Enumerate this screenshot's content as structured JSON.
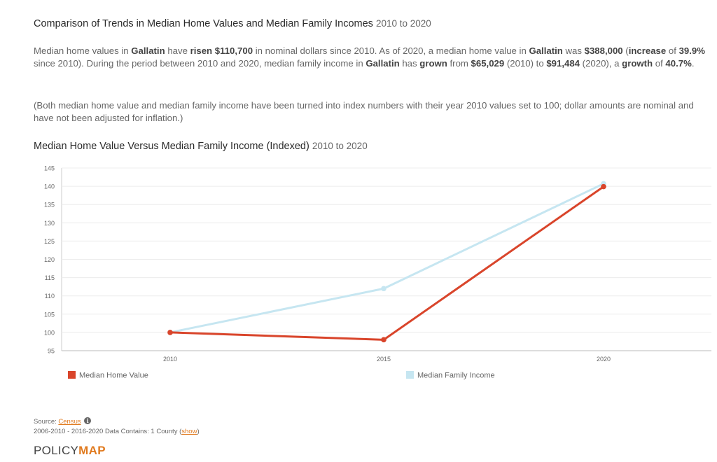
{
  "header": {
    "title": "Comparison of Trends in Median Home Values and Median Family Incomes",
    "title_range": "2010 to 2020"
  },
  "summary": {
    "t1": "Median home values in ",
    "place1": "Gallatin",
    "t2": " have ",
    "verb1": "risen $110,700",
    "t3": " in nominal dollars since 2010. As of 2020, a median home value in ",
    "place2": "Gallatin",
    "t4": " was ",
    "value2020": "$388,000",
    "t5": " (",
    "inc_word": "increase",
    "t6": " of ",
    "inc_pct": "39.9%",
    "t7": " since 2010). During the period between 2010 and 2020, median family income in ",
    "place3": "Gallatin",
    "t8": " has ",
    "verb2": "grown",
    "t9": " from ",
    "income2010": "$65,029",
    "t10": " (2010) to ",
    "income2020": "$91,484",
    "t11": " (2020), a ",
    "growth_word": "growth",
    "t12": " of ",
    "growth_pct": "40.7%",
    "t13": "."
  },
  "note": "(Both median home value and median family income have been turned into index numbers with their year 2010 values set to 100; dollar amounts are nominal and have not been adjusted for inflation.)",
  "chart_data": {
    "type": "line",
    "title": "Median Home Value Versus Median Family Income (Indexed)",
    "subtitle": "2010 to 2020",
    "categories": [
      "2010",
      "2015",
      "2020"
    ],
    "ylim": [
      95,
      145
    ],
    "yticks": [
      95,
      100,
      105,
      110,
      115,
      120,
      125,
      130,
      135,
      140,
      145
    ],
    "grid": true,
    "legend_position": "bottom",
    "series": [
      {
        "name": "Median Home Value",
        "color": "#d9452b",
        "values": [
          100,
          98,
          139.9
        ]
      },
      {
        "name": "Median Family Income",
        "color": "#c6e6f1",
        "values": [
          100,
          112,
          140.7
        ]
      }
    ]
  },
  "footer": {
    "source_label": "Source: ",
    "source_link": "Census",
    "info_glyph": "i",
    "range_text": "2006-2010 - 2016-2020 Data Contains: 1 County (",
    "show_link": "show",
    "range_close": ")"
  },
  "logo": {
    "part1": "POLICY",
    "part2": "MAP"
  }
}
